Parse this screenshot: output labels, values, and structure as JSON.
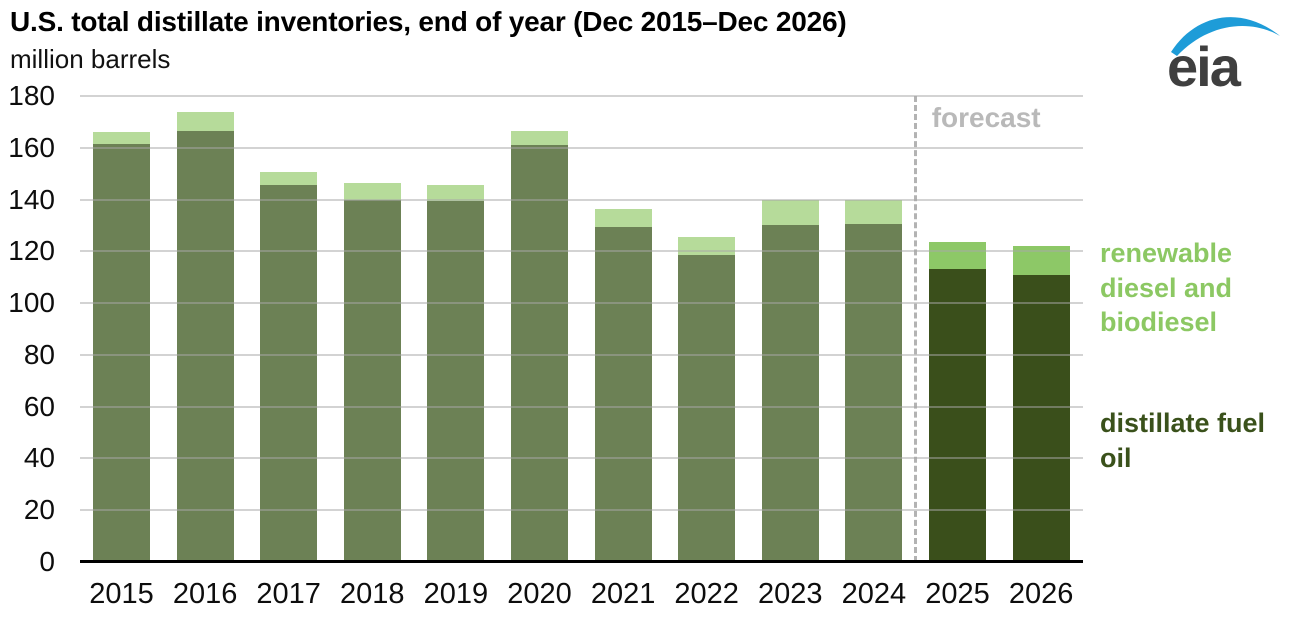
{
  "header": {
    "title": "U.S. total distillate inventories, end of year (Dec 2015–Dec 2026)",
    "subtitle": "million barrels"
  },
  "logo": {
    "text": "eia",
    "text_color": "#3f3f3f",
    "swoosh_color": "#1e9cd8"
  },
  "chart_data": {
    "type": "bar",
    "stacked": true,
    "title": "U.S. total distillate inventories, end of year (Dec 2015–Dec 2026)",
    "ylabel": "million barrels",
    "xlabel": "",
    "ylim": [
      0,
      180
    ],
    "yticks": [
      0,
      20,
      40,
      60,
      80,
      100,
      120,
      140,
      160,
      180
    ],
    "grid": "horizontal",
    "categories": [
      "2015",
      "2016",
      "2017",
      "2018",
      "2019",
      "2020",
      "2021",
      "2022",
      "2023",
      "2024",
      "2025",
      "2026"
    ],
    "series": [
      {
        "name": "distillate fuel oil",
        "values": [
          161.5,
          166.5,
          145.5,
          140,
          139.5,
          161,
          129.5,
          118.5,
          130,
          130.5,
          113,
          111
        ],
        "color_history": "#6c8155",
        "color_forecast": "#3a4f1b"
      },
      {
        "name": "renewable diesel and biodiesel",
        "values": [
          4.5,
          7.5,
          5,
          6.5,
          6,
          5.5,
          7,
          7,
          10,
          9.5,
          10.5,
          11
        ],
        "color_history": "#b6db9a",
        "color_forecast": "#8dc867"
      }
    ],
    "totals": [
      166,
      174,
      150.5,
      146.5,
      145.5,
      166.5,
      136.5,
      125.5,
      140,
      140,
      123.5,
      122
    ],
    "forecast_start_index": 10,
    "forecast_label": "forecast",
    "forecast_label_color": "#b9b9b9",
    "legend_position": "right",
    "legend": {
      "renewable_label": "renewable diesel and biodiesel",
      "renewable_color": "#8cc863",
      "distillate_label": "distillate fuel oil",
      "distillate_color": "#3a511b"
    }
  }
}
